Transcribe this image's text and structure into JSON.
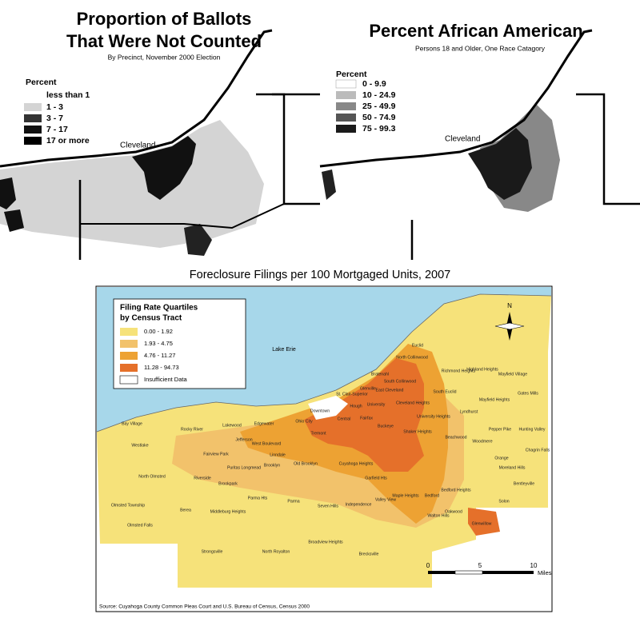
{
  "maps": [
    {
      "title_lines": [
        "Proportion of Ballots",
        "That Were Not Counted"
      ],
      "subtitle": "By Precinct, November 2000 Election",
      "legend": {
        "title": "Percent",
        "items": [
          "less than 1",
          "1 - 3",
          "3 - 7",
          "7 - 17",
          "17 or more"
        ]
      },
      "city": "Cleveland"
    },
    {
      "title_lines": [
        "Percent African American"
      ],
      "subtitle": "Persons 18 and Older, One Race Catagory",
      "legend": {
        "title": "Percent",
        "items": [
          "0 - 9.9",
          "10 - 24.9",
          "25 - 49.9",
          "50 - 74.9",
          "75 - 99.3"
        ]
      },
      "city": "Cleveland"
    }
  ],
  "foreclosure": {
    "title": "Foreclosure Filings per 100 Mortgaged Units, 2007",
    "legend": {
      "title_lines": [
        "Filing Rate Quartiles",
        "by Census Tract"
      ],
      "items": [
        "0.00 - 1.92",
        "1.93 - 4.75",
        "4.76 - 11.27",
        "11.28 - 94.73",
        "Insufficient Data"
      ]
    },
    "water": "Lake Erie",
    "north": "N",
    "scale": {
      "ticks": [
        0,
        5,
        10
      ],
      "unit": "Miles"
    },
    "places": [
      "Euclid",
      "North Collinwood",
      "Bratenahl",
      "South Collinwood",
      "Richmond Heights",
      "Highland Heights",
      "Mayfield Village",
      "Glenville",
      "East Cleveland",
      "South Euclid",
      "Mayfield Heights",
      "Gates Mills",
      "St. Clair-Superior",
      "Hough",
      "University",
      "Cleveland Heights",
      "Lyndhurst",
      "Downtown",
      "University Heights",
      "Pepper Pike",
      "Hunting Valley",
      "Bay Village",
      "Rocky River",
      "Lakewood",
      "Edgewater",
      "Central",
      "Fairfax",
      "Buckeye",
      "Shaker Heights",
      "Beachwood",
      "Woodmere",
      "Chagrin Falls",
      "Westlake",
      "Fairview Park",
      "Jefferson",
      "Ohio City",
      "Tremont",
      "West Boulevard",
      "Brooklyn",
      "Old Brooklyn",
      "Cuyahoga Heights",
      "Garfield Hts",
      "Maple Heights",
      "Bedford",
      "Bedford Heights",
      "Orange",
      "Moreland Hills",
      "Bentleyville",
      "Solon",
      "North Olmsted",
      "Olmsted Township",
      "Olmsted Falls",
      "Berea",
      "Middleburg Heights",
      "Parma Hts",
      "Parma",
      "Seven Hills",
      "Independence",
      "Valley View",
      "Walton Hills",
      "Oakwood",
      "Glenwillow",
      "Strongsville",
      "North Royalton",
      "Broadview Heights",
      "Brecksville",
      "Brookpark",
      "Riverside",
      "Puritas Longmead",
      "Linndale"
    ],
    "source": "Source: Cuyahoga County Common Pleas Court and U.S. Bureau of Census, Census 2000"
  }
}
